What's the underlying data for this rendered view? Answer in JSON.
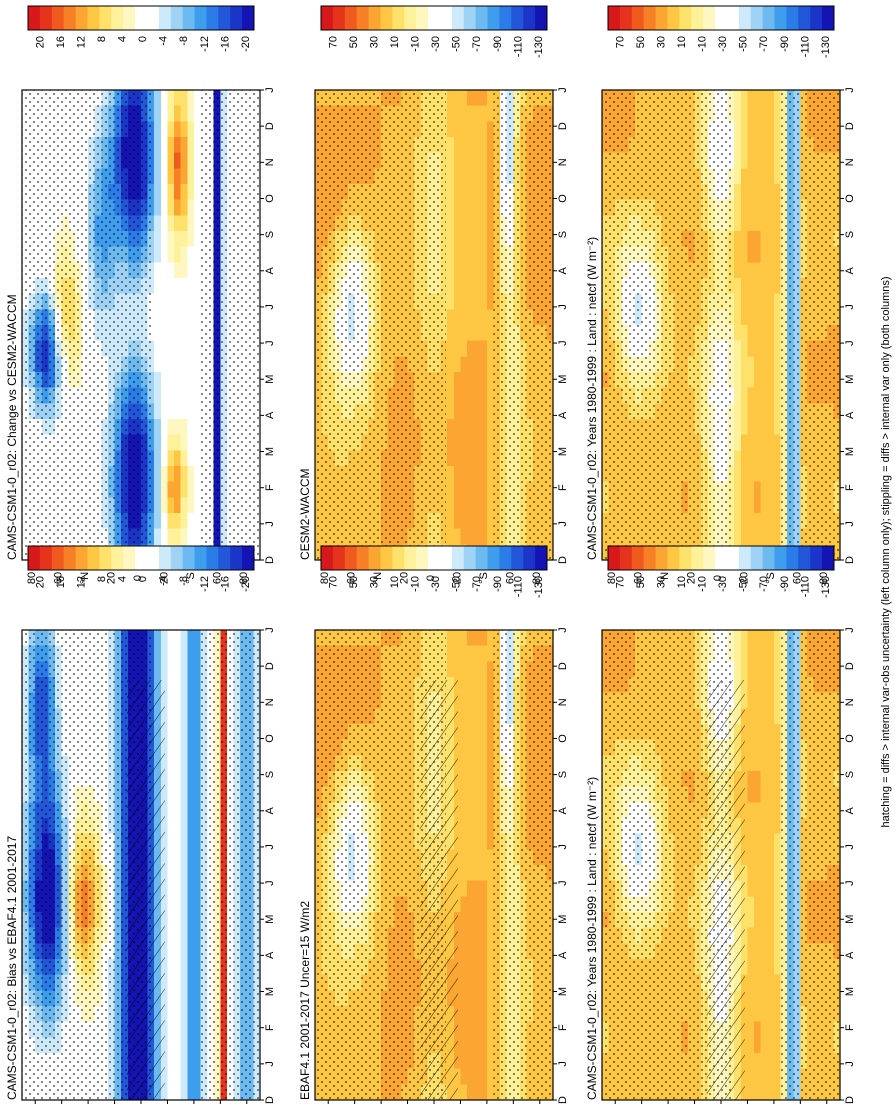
{
  "figure": {
    "footnote": "hatching = diffs > internal var-obs uncertainty (left column only); stippling = diffs > internal var only (both columns)"
  },
  "chart_data": [
    {
      "id": "top-right",
      "type": "heatmap",
      "title": "CAMS-CSM1-0_r02: Years 1980-1999 : Land : netcf (W m⁻²)",
      "xlabel": "",
      "ylabel": "",
      "x_ticks": [
        "D",
        "J",
        "F",
        "M",
        "A",
        "M",
        "J",
        "J",
        "A",
        "S",
        "O",
        "N",
        "D",
        "J"
      ],
      "y_ticks": [
        "80",
        "60",
        "°N",
        "20",
        "0",
        "20",
        "°S",
        "60",
        "80"
      ],
      "colorbar_labels": [
        "70",
        "50",
        "30",
        "10",
        "-10",
        "-30",
        "-50",
        "-70",
        "-90",
        "-110",
        "-130"
      ],
      "scale": "abs",
      "hatching": false,
      "pattern": 0
    },
    {
      "id": "top-left",
      "type": "heatmap",
      "title": "CAMS-CSM1-0_r02: Years 1980-1999 : Land : netcf (W m⁻²)",
      "xlabel": "",
      "ylabel": "",
      "x_ticks": [
        "D",
        "J",
        "F",
        "M",
        "A",
        "M",
        "J",
        "J",
        "A",
        "S",
        "O",
        "N",
        "D",
        "J"
      ],
      "y_ticks": [
        "80",
        "60",
        "°N",
        "20",
        "0",
        "20",
        "°S",
        "60",
        "80"
      ],
      "colorbar_labels": [
        "70",
        "50",
        "30",
        "10",
        "-10",
        "-30",
        "-50",
        "-70",
        "-90",
        "-110",
        "-130"
      ],
      "scale": "abs",
      "hatching": true,
      "pattern": 0
    },
    {
      "id": "middle-right",
      "type": "heatmap",
      "title": "CESM2-WACCM",
      "xlabel": "",
      "ylabel": "",
      "x_ticks": [
        "D",
        "J",
        "F",
        "M",
        "A",
        "M",
        "J",
        "J",
        "A",
        "S",
        "O",
        "N",
        "D",
        "J"
      ],
      "y_ticks": [
        "80",
        "60",
        "°N",
        "20",
        "0",
        "20",
        "°S",
        "60",
        "80"
      ],
      "colorbar_labels": [
        "70",
        "50",
        "30",
        "10",
        "-10",
        "-30",
        "-50",
        "-70",
        "-90",
        "-110",
        "-130"
      ],
      "scale": "abs",
      "hatching": false,
      "pattern": 1
    },
    {
      "id": "middle-left",
      "type": "heatmap",
      "title": "EBAF4.1 2001-2017 Uncer=15 W/m2",
      "xlabel": "",
      "ylabel": "",
      "x_ticks": [
        "D",
        "J",
        "F",
        "M",
        "A",
        "M",
        "J",
        "J",
        "A",
        "S",
        "O",
        "N",
        "D",
        "J"
      ],
      "y_ticks": [
        "80",
        "60",
        "°N",
        "20",
        "0",
        "20",
        "°S",
        "60",
        "80"
      ],
      "colorbar_labels": [
        "70",
        "50",
        "30",
        "10",
        "-10",
        "-30",
        "-50",
        "-70",
        "-90",
        "-110",
        "-130"
      ],
      "scale": "abs",
      "hatching": true,
      "pattern": 1
    },
    {
      "id": "bottom-right",
      "type": "heatmap",
      "title": "CAMS-CSM1-0_r02: Change vs CESM2-WACCM",
      "xlabel": "",
      "ylabel": "",
      "x_ticks": [
        "D",
        "J",
        "F",
        "M",
        "A",
        "M",
        "J",
        "J",
        "A",
        "S",
        "O",
        "N",
        "D",
        "J"
      ],
      "y_ticks": [
        "80",
        "60",
        "°N",
        "20",
        "0",
        "20",
        "°S",
        "60",
        "80"
      ],
      "colorbar_labels": [
        "20",
        "16",
        "12",
        "8",
        "4",
        "0",
        "-4",
        "-8",
        "-12",
        "-16",
        "-20"
      ],
      "scale": "diff",
      "hatching": false,
      "pattern": 2
    },
    {
      "id": "bottom-left",
      "type": "heatmap",
      "title": "CAMS-CSM1-0_r02: Bias vs EBAF4.1 2001-2017",
      "xlabel": "",
      "ylabel": "",
      "x_ticks": [
        "D",
        "J",
        "F",
        "M",
        "A",
        "M",
        "J",
        "J",
        "A",
        "S",
        "O",
        "N",
        "D",
        "J"
      ],
      "y_ticks": [
        "80",
        "60",
        "°N",
        "20",
        "0",
        "20",
        "°S",
        "60",
        "80"
      ],
      "colorbar_labels": [
        "20",
        "16",
        "12",
        "8",
        "4",
        "0",
        "-4",
        "-8",
        "-12",
        "-16",
        "-20"
      ],
      "scale": "diff",
      "hatching": true,
      "pattern": 3
    }
  ],
  "palette": [
    "#d7191c",
    "#e6331b",
    "#f05a1e",
    "#f77f26",
    "#fba533",
    "#fdc744",
    "#fde16a",
    "#fdf29a",
    "#fff7c0",
    "#ffffff",
    "#ffffff",
    "#cdeafb",
    "#9ed3f5",
    "#6dbaf0",
    "#3f9ded",
    "#2b7ce8",
    "#2157d8",
    "#1a35c8",
    "#1414b4"
  ]
}
